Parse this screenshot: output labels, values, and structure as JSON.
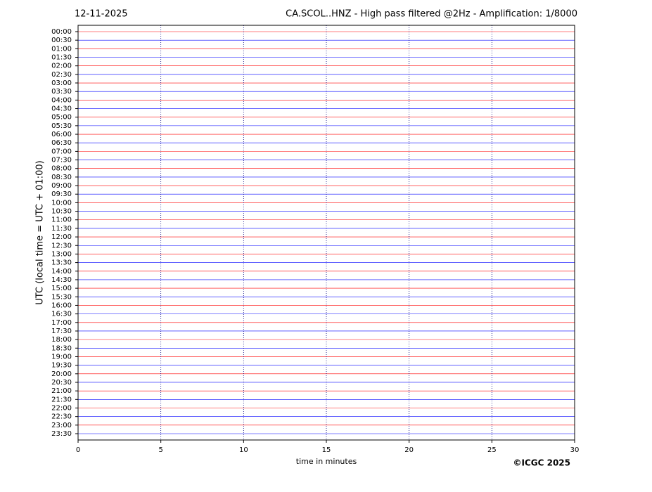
{
  "chart_data": {
    "type": "helicorder",
    "date": "12-11-2025",
    "title": "CA.SCOL..HNZ - High pass filtered @2Hz - Amplification: 1/8000",
    "y_label": "UTC (local time = UTC + 01:00)",
    "x_label": "time in minutes",
    "credit": "©ICGC 2025",
    "categories": [
      "00:00",
      "00:30",
      "01:00",
      "01:30",
      "02:00",
      "02:30",
      "03:00",
      "03:30",
      "04:00",
      "04:30",
      "05:00",
      "05:30",
      "06:00",
      "06:30",
      "07:00",
      "07:30",
      "08:00",
      "08:30",
      "09:00",
      "09:30",
      "10:00",
      "10:30",
      "11:00",
      "11:30",
      "12:00",
      "12:30",
      "13:00",
      "13:30",
      "14:00",
      "14:30",
      "15:00",
      "15:30",
      "16:00",
      "16:30",
      "17:00",
      "17:30",
      "18:00",
      "18:30",
      "19:00",
      "19:30",
      "20:00",
      "20:30",
      "21:00",
      "21:30",
      "22:00",
      "22:30",
      "23:00",
      "23:30"
    ],
    "trace_colors": [
      "#ff0000",
      "#0000ff"
    ],
    "xlim": [
      0,
      30
    ],
    "xticks": [
      0,
      5,
      10,
      15,
      20,
      25,
      30
    ],
    "grid": true
  }
}
